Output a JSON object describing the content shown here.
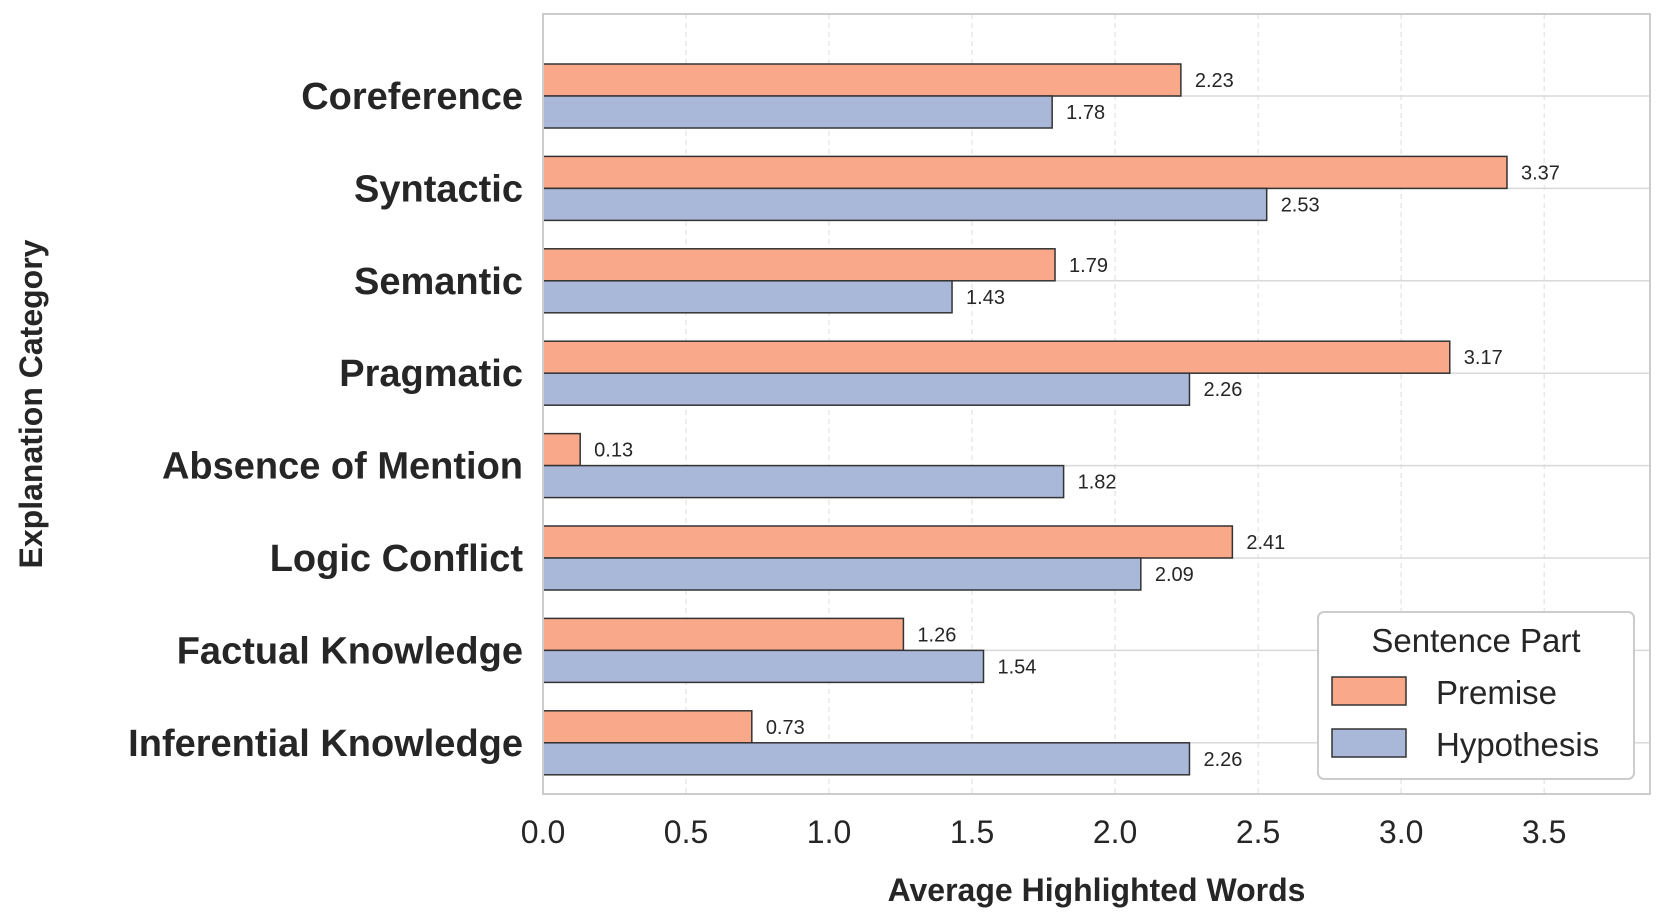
{
  "chart_data": {
    "type": "bar",
    "orientation": "horizontal",
    "title": "",
    "xlabel": "Average Highlighted Words",
    "ylabel": "Explanation Category",
    "xlim": [
      0,
      3.87
    ],
    "xticks": [
      "0.0",
      "0.5",
      "1.0",
      "1.5",
      "2.0",
      "2.5",
      "3.0",
      "3.5"
    ],
    "grid": true,
    "categories": [
      "Coreference",
      "Syntactic",
      "Semantic",
      "Pragmatic",
      "Absence of Mention",
      "Logic Conflict",
      "Factual Knowledge",
      "Inferential Knowledge"
    ],
    "series": [
      {
        "name": "Premise",
        "color": "#F9A889",
        "values": [
          2.23,
          3.37,
          1.79,
          3.17,
          0.13,
          2.41,
          1.26,
          0.73
        ],
        "labels": [
          "2.23",
          "3.37",
          "1.79",
          "3.17",
          "0.13",
          "2.41",
          "1.26",
          "0.73"
        ]
      },
      {
        "name": "Hypothesis",
        "color": "#A9B7D9",
        "values": [
          1.78,
          2.53,
          1.43,
          2.26,
          1.82,
          2.09,
          1.54,
          2.26
        ],
        "labels": [
          "1.78",
          "2.53",
          "1.43",
          "2.26",
          "1.82",
          "2.09",
          "1.54",
          "2.26"
        ]
      }
    ],
    "legend": {
      "title": "Sentence Part",
      "placement": "lower-right"
    }
  }
}
